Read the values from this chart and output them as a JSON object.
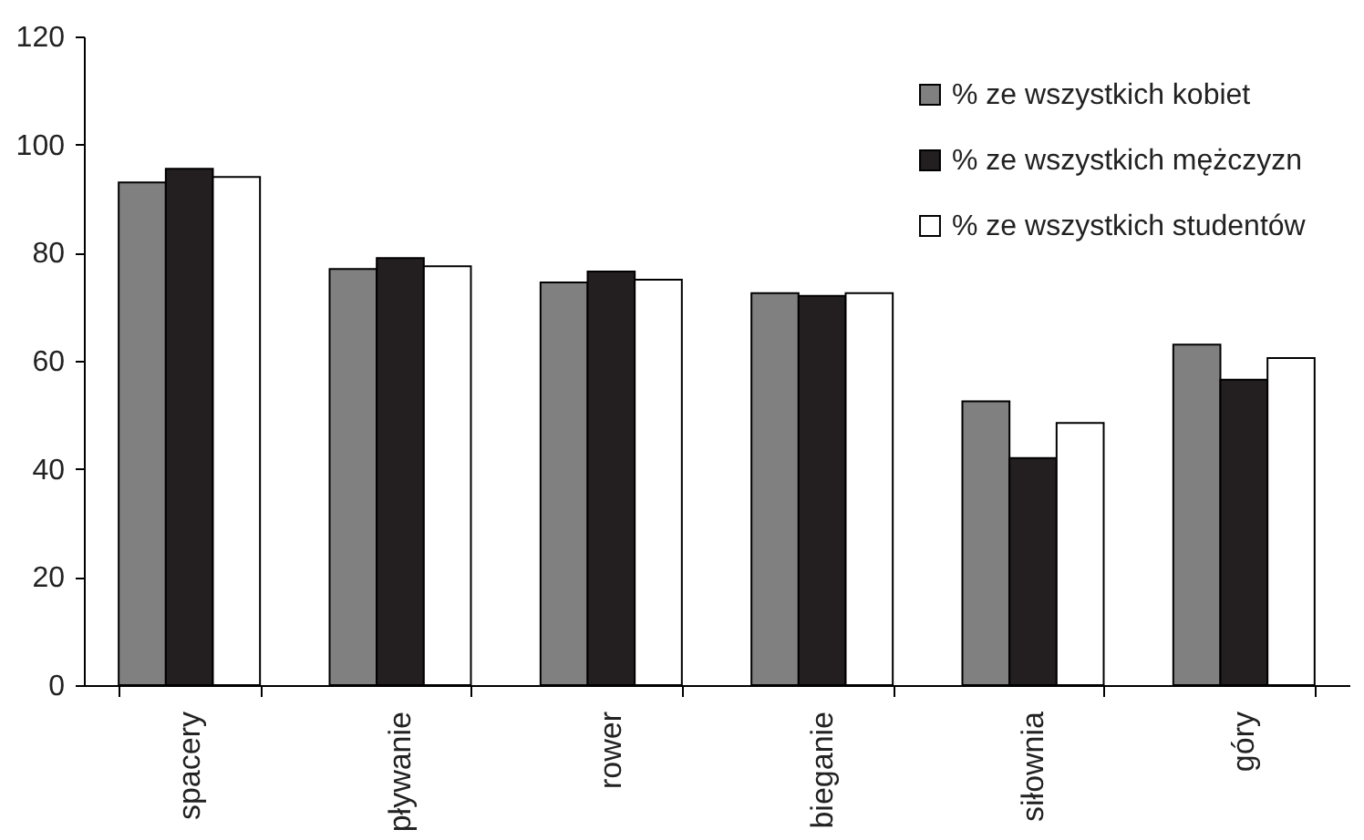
{
  "chart_data": {
    "type": "bar",
    "categories": [
      "spacery",
      "pływanie",
      "rower",
      "bieganie",
      "siłownia",
      "góry"
    ],
    "series": [
      {
        "name": "% ze wszystkich kobiet",
        "color": "#808080",
        "values": [
          93,
          77,
          74.5,
          72.5,
          52.5,
          63
        ]
      },
      {
        "name": "% ze wszystkich mężczyzn",
        "color": "#231f20",
        "values": [
          95.5,
          79,
          76.5,
          72,
          42,
          56.5
        ]
      },
      {
        "name": "% ze wszystkich studentów",
        "color": "#ffffff",
        "values": [
          94,
          77.5,
          75,
          72.5,
          48.5,
          60.5
        ]
      }
    ],
    "ylim": [
      0,
      120
    ],
    "yticks": [
      0,
      20,
      40,
      60,
      80,
      100,
      120
    ],
    "legend": "top right"
  }
}
